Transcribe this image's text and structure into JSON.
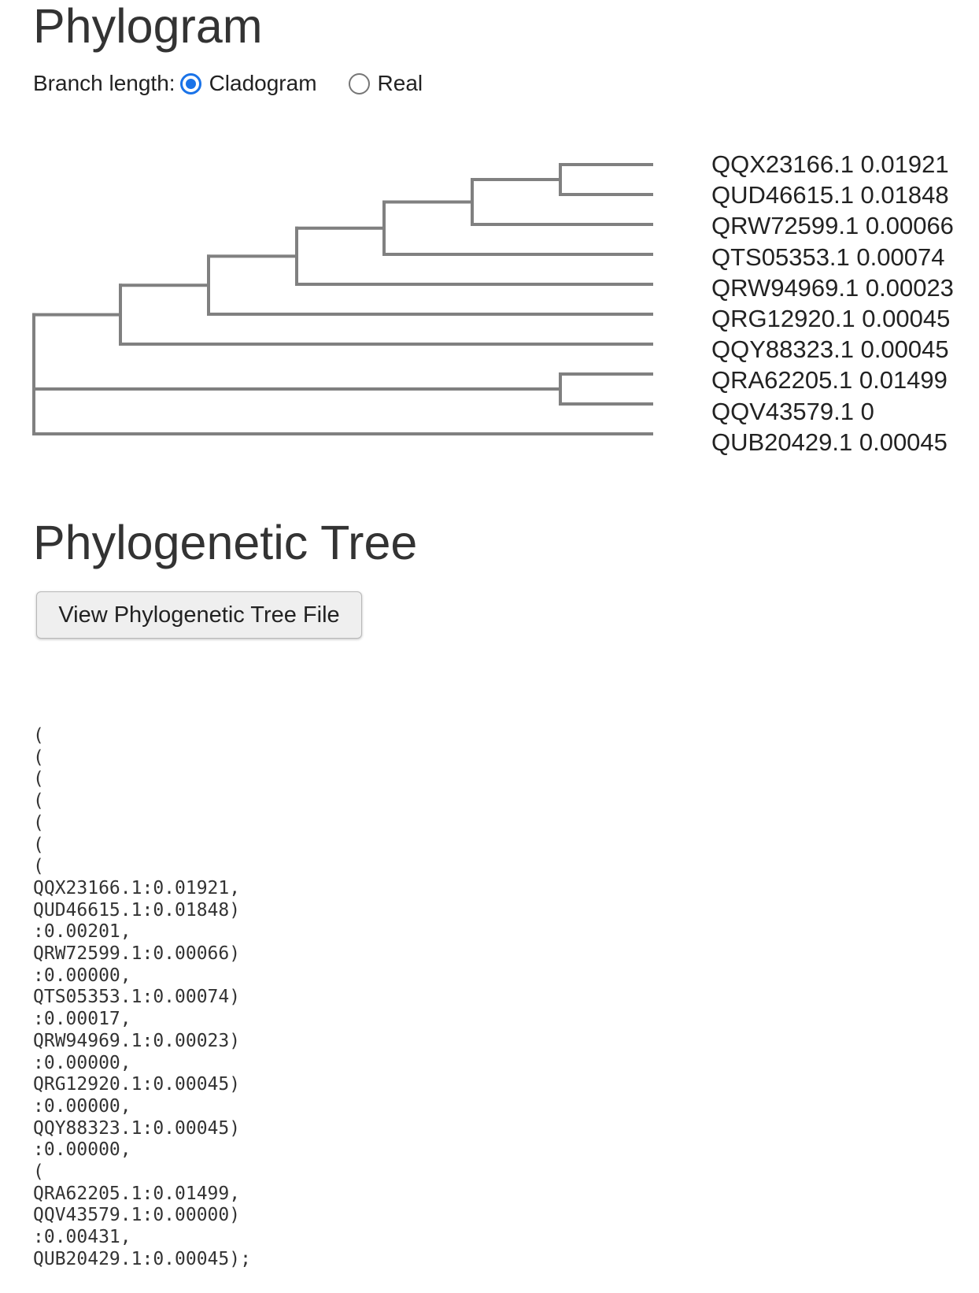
{
  "phylogram": {
    "title": "Phylogram",
    "branch_length_label": "Branch length:",
    "options": [
      {
        "label": "Cladogram",
        "selected": true
      },
      {
        "label": "Real",
        "selected": false
      }
    ],
    "leaves": [
      "QQX23166.1 0.01921",
      "QUD46615.1 0.01848",
      "QRW72599.1 0.00066",
      "QTS05353.1 0.00074",
      "QRW94969.1 0.00023",
      "QRG12920.1 0.00045",
      "QQY88323.1 0.00045",
      "QRA62205.1 0.01499",
      "QQV43579.1 0",
      "QUB20429.1 0.00045"
    ],
    "tree_color": "#808080"
  },
  "phylogenetic_tree": {
    "title": "Phylogenetic Tree",
    "view_button_label": "View Phylogenetic Tree File",
    "newick_lines": [
      "(",
      "(",
      "(",
      "(",
      "(",
      "(",
      "(",
      "QQX23166.1:0.01921,",
      "QUD46615.1:0.01848)",
      ":0.00201,",
      "QRW72599.1:0.00066)",
      ":0.00000,",
      "QTS05353.1:0.00074)",
      ":0.00017,",
      "QRW94969.1:0.00023)",
      ":0.00000,",
      "QRG12920.1:0.00045)",
      ":0.00000,",
      "QQY88323.1:0.00045)",
      ":0.00000,",
      "(",
      "QRA62205.1:0.01499,",
      "QQV43579.1:0.00000)",
      ":0.00431,",
      "QUB20429.1:0.00045);"
    ]
  }
}
